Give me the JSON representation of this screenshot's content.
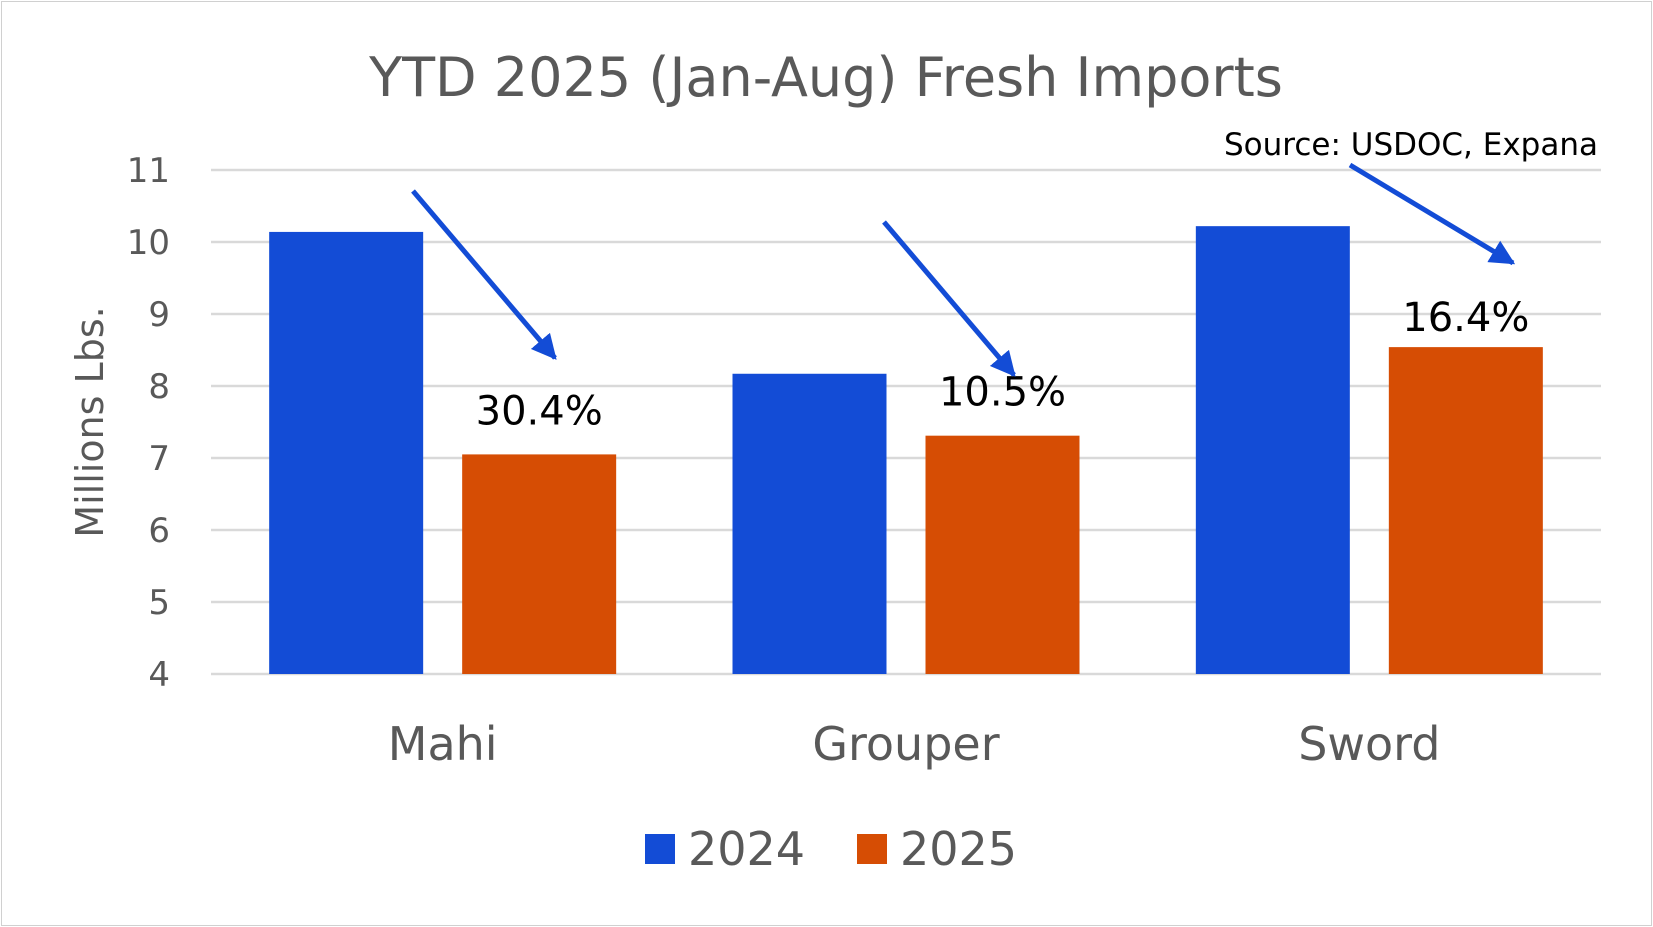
{
  "chart_data": {
    "type": "bar",
    "title": "YTD 2025 (Jan-Aug) Fresh Imports",
    "ylabel": "Millions Lbs.",
    "xlabel": "",
    "ylim": [
      4,
      11
    ],
    "yticks": [
      "4",
      "5",
      "6",
      "7",
      "8",
      "9",
      "10",
      "11"
    ],
    "grid": true,
    "legend_position": "bottom",
    "categories": [
      "Mahi",
      "Grouper",
      "Sword"
    ],
    "series": [
      {
        "name": "2024",
        "color": "#134cd6",
        "values": [
          10.14,
          8.17,
          10.22
        ]
      },
      {
        "name": "2025",
        "color": "#d64d04",
        "values": [
          7.05,
          7.31,
          8.54
        ]
      }
    ],
    "annotations": {
      "change_labels": [
        "30.4%",
        "10.5%",
        "16.4%"
      ],
      "arrow_color": "#134cd6",
      "source": "Source: USDOC, Expana"
    }
  }
}
